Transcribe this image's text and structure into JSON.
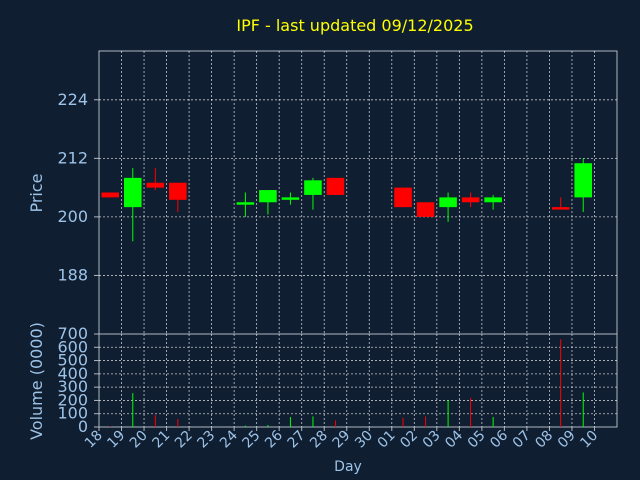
{
  "chart_data": [
    {
      "type": "candlestick",
      "title": "IPF - last updated 09/12/2025",
      "ylabel": "Price",
      "ylim": [
        176,
        234
      ],
      "yticks": [
        188,
        200,
        212,
        224
      ],
      "grid": true,
      "x_tick_labels": [
        "18",
        "19",
        "20",
        "21",
        "22",
        "23",
        "24",
        "25",
        "26",
        "27",
        "28",
        "29",
        "30",
        "01",
        "02",
        "03",
        "04",
        "05",
        "06",
        "07",
        "08",
        "09",
        "10"
      ],
      "candles": [
        {
          "day": "18",
          "open": 205,
          "high": 205,
          "low": 204,
          "close": 204
        },
        {
          "day": "19",
          "open": 202,
          "high": 210,
          "low": 195,
          "close": 208
        },
        {
          "day": "20",
          "open": 207,
          "high": 210,
          "low": 205.5,
          "close": 206
        },
        {
          "day": "21",
          "open": 207,
          "high": 207,
          "low": 201,
          "close": 203.5
        },
        {
          "day": "24",
          "open": 202.5,
          "high": 205,
          "low": 200,
          "close": 203
        },
        {
          "day": "25",
          "open": 203,
          "high": 205.5,
          "low": 200.5,
          "close": 205.5
        },
        {
          "day": "26",
          "open": 203.5,
          "high": 205,
          "low": 202.5,
          "close": 204
        },
        {
          "day": "27",
          "open": 204.5,
          "high": 208,
          "low": 201.5,
          "close": 207.5
        },
        {
          "day": "28",
          "open": 208,
          "high": 208,
          "low": 204.5,
          "close": 204.5
        },
        {
          "day": "01",
          "open": 206,
          "high": 206,
          "low": 202,
          "close": 202
        },
        {
          "day": "02",
          "open": 203,
          "high": 203,
          "low": 200,
          "close": 200
        },
        {
          "day": "03",
          "open": 202,
          "high": 205,
          "low": 199,
          "close": 204
        },
        {
          "day": "04",
          "open": 204,
          "high": 205,
          "low": 202,
          "close": 203
        },
        {
          "day": "05",
          "open": 203,
          "high": 204.5,
          "low": 201.5,
          "close": 204
        },
        {
          "day": "08",
          "open": 202,
          "high": 204,
          "low": 201.5,
          "close": 201.5
        },
        {
          "day": "09",
          "open": 204,
          "high": 212,
          "low": 201,
          "close": 211
        }
      ]
    },
    {
      "type": "bar",
      "ylabel": "Volume (0000)",
      "xlabel": "Day",
      "ylim": [
        0,
        700
      ],
      "yticks": [
        0,
        100,
        200,
        300,
        400,
        500,
        600,
        700
      ],
      "grid": true,
      "categories": [
        "18",
        "19",
        "20",
        "21",
        "24",
        "25",
        "26",
        "27",
        "28",
        "01",
        "02",
        "03",
        "04",
        "05",
        "08",
        "09"
      ],
      "values": [
        5,
        255,
        90,
        60,
        10,
        15,
        75,
        80,
        50,
        70,
        80,
        200,
        220,
        75,
        660,
        260
      ],
      "directions": [
        "down",
        "up",
        "down",
        "down",
        "up",
        "up",
        "up",
        "up",
        "down",
        "down",
        "down",
        "up",
        "down",
        "up",
        "down",
        "up"
      ]
    }
  ],
  "colors": {
    "background": "#0f1e30",
    "title": "#ffff00",
    "axis_text": "#9ec3e8",
    "up": "#00ff00",
    "down": "#ff0000"
  }
}
